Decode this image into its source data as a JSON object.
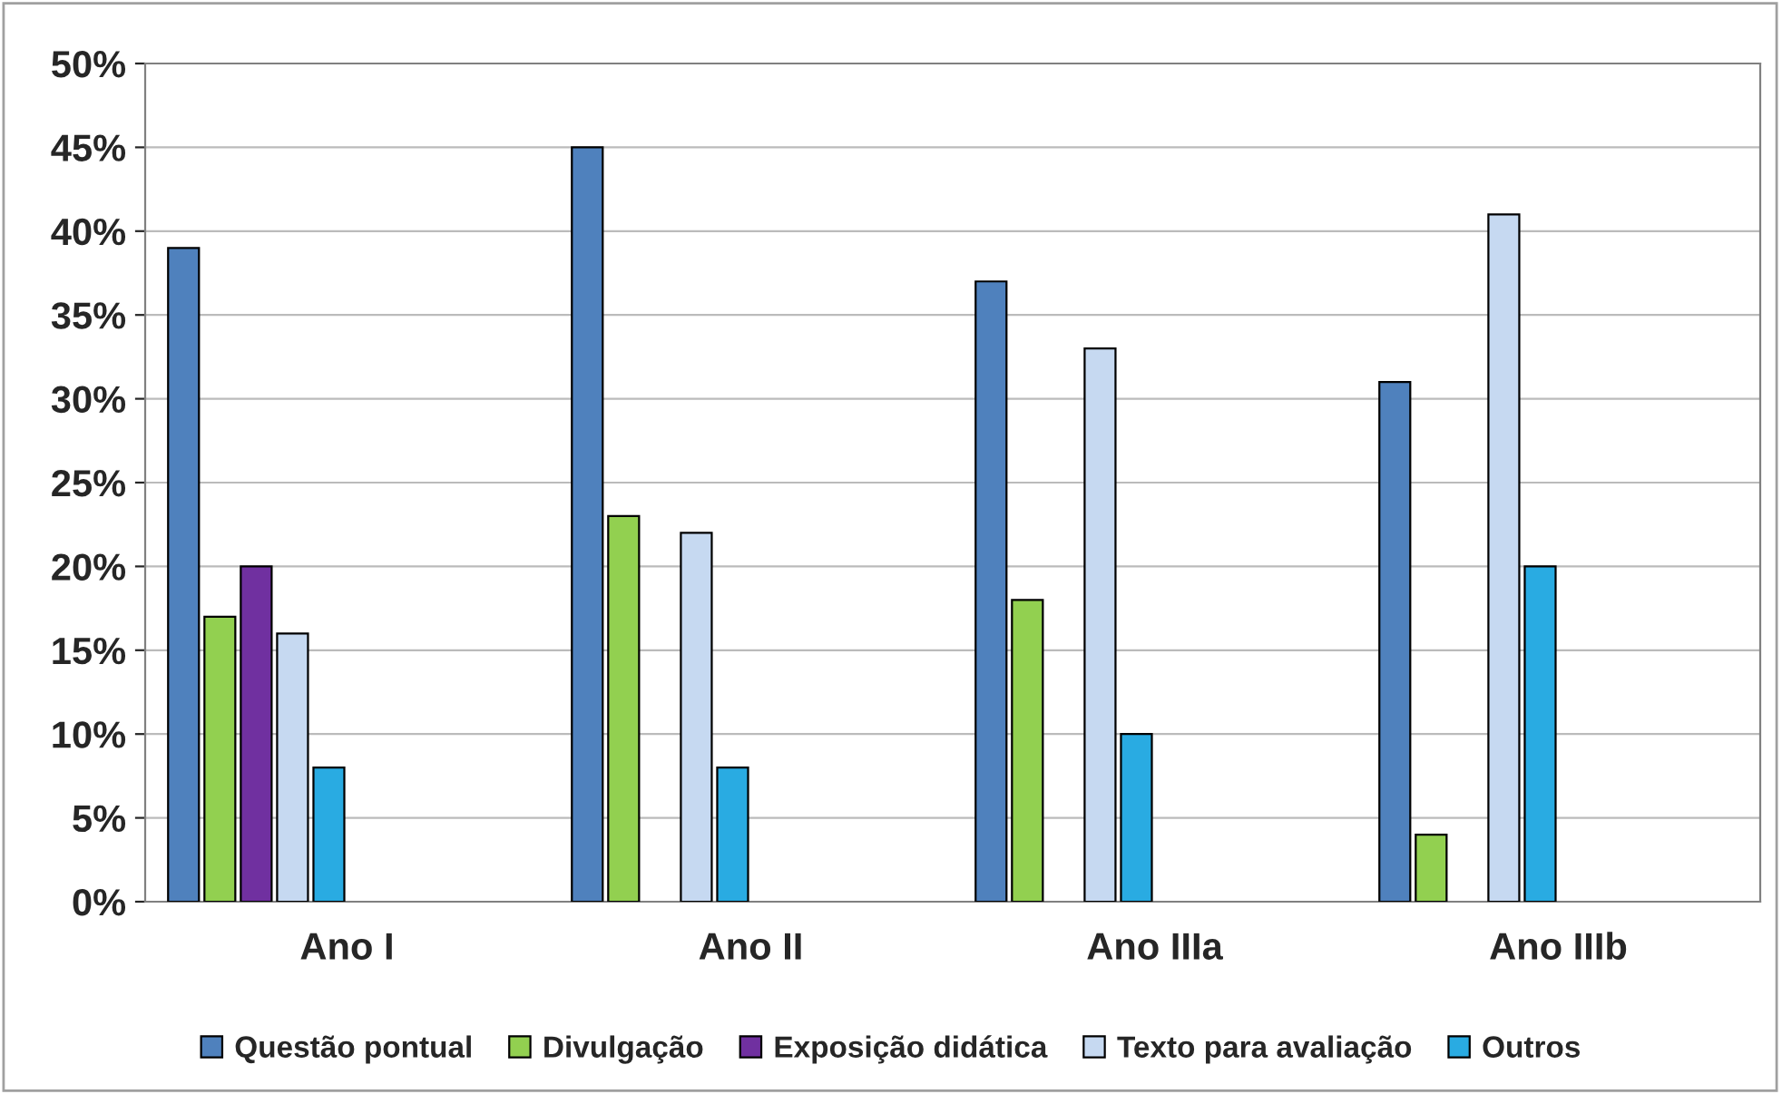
{
  "chart_data": {
    "type": "bar",
    "categories": [
      "Ano I",
      "Ano II",
      "Ano IIIa",
      "Ano IIIb"
    ],
    "series": [
      {
        "name": "Questão pontual",
        "color": "#4f81bd",
        "values": [
          39,
          45,
          37,
          31
        ]
      },
      {
        "name": "Divulgação",
        "color": "#92d050",
        "values": [
          17,
          23,
          18,
          4
        ]
      },
      {
        "name": "Exposição didática",
        "color": "#7030a0",
        "values": [
          20,
          null,
          null,
          null
        ]
      },
      {
        "name": "Texto para avaliação",
        "color": "#c6d9f1",
        "values": [
          16,
          22,
          33,
          41
        ]
      },
      {
        "name": "Outros",
        "color": "#29abe2",
        "values": [
          8,
          8,
          10,
          20
        ]
      }
    ],
    "ylim": [
      0,
      50
    ],
    "yticks": [
      {
        "value": 0,
        "label": "0%"
      },
      {
        "value": 5,
        "label": "5%"
      },
      {
        "value": 10,
        "label": "10%"
      },
      {
        "value": 15,
        "label": "15%"
      },
      {
        "value": 20,
        "label": "20%"
      },
      {
        "value": 25,
        "label": "25%"
      },
      {
        "value": 30,
        "label": "30%"
      },
      {
        "value": 35,
        "label": "35%"
      },
      {
        "value": 40,
        "label": "40%"
      },
      {
        "value": 45,
        "label": "45%"
      },
      {
        "value": 50,
        "label": "50%"
      }
    ],
    "grid": "y",
    "legend": "bottom"
  }
}
